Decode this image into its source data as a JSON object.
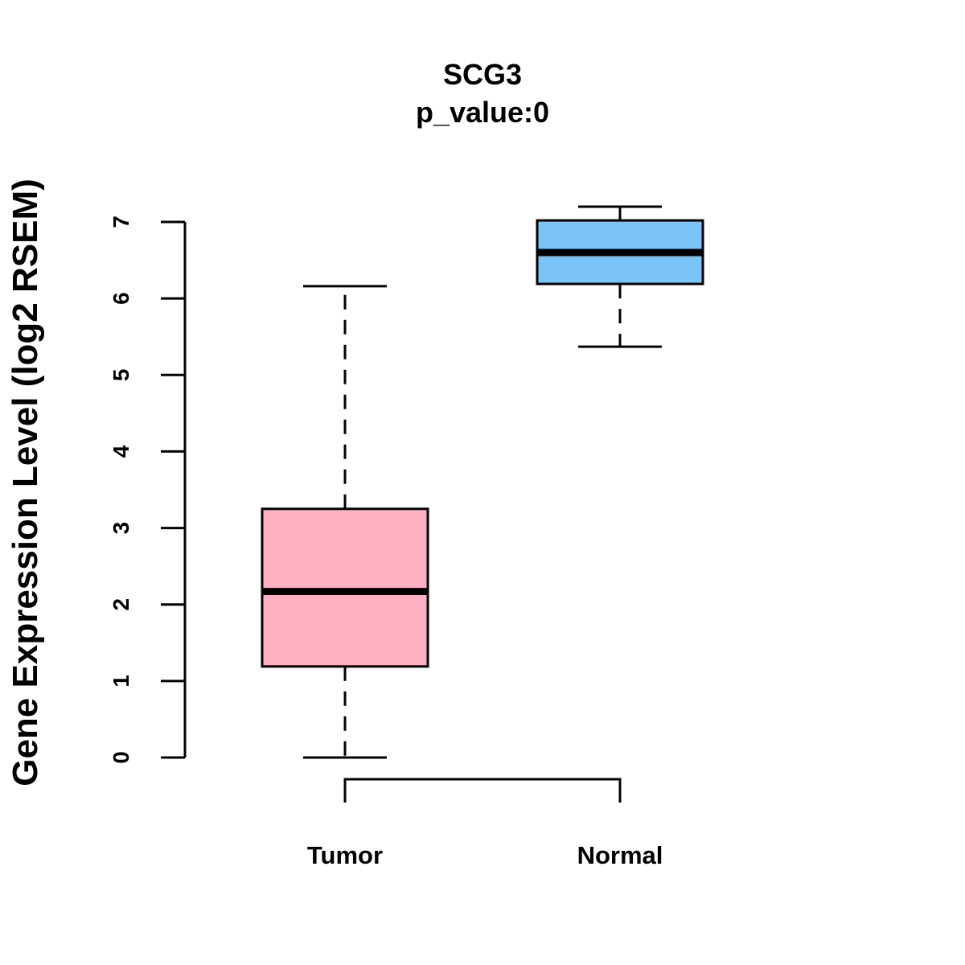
{
  "chart_data": {
    "type": "boxplot",
    "title": "SCG3",
    "subtitle": "p_value:0",
    "xlabel": "",
    "ylabel": "Gene Expression Level (log2 RSEM)",
    "ylim": [
      0,
      7
    ],
    "yticks": [
      0,
      1,
      2,
      3,
      4,
      5,
      6,
      7
    ],
    "grid": false,
    "categories": [
      "Tumor",
      "Normal"
    ],
    "series": [
      {
        "name": "Tumor",
        "color": "#FFB0C2",
        "whisker_low": 0.0,
        "q1": 1.19,
        "median": 2.17,
        "q3": 3.25,
        "whisker_high": 6.16
      },
      {
        "name": "Normal",
        "color": "#7AC4F8",
        "whisker_low": 5.37,
        "q1": 6.19,
        "median": 6.6,
        "q3": 7.02,
        "whisker_high": 7.2
      }
    ],
    "comparison_bracket": [
      "Tumor",
      "Normal"
    ]
  }
}
